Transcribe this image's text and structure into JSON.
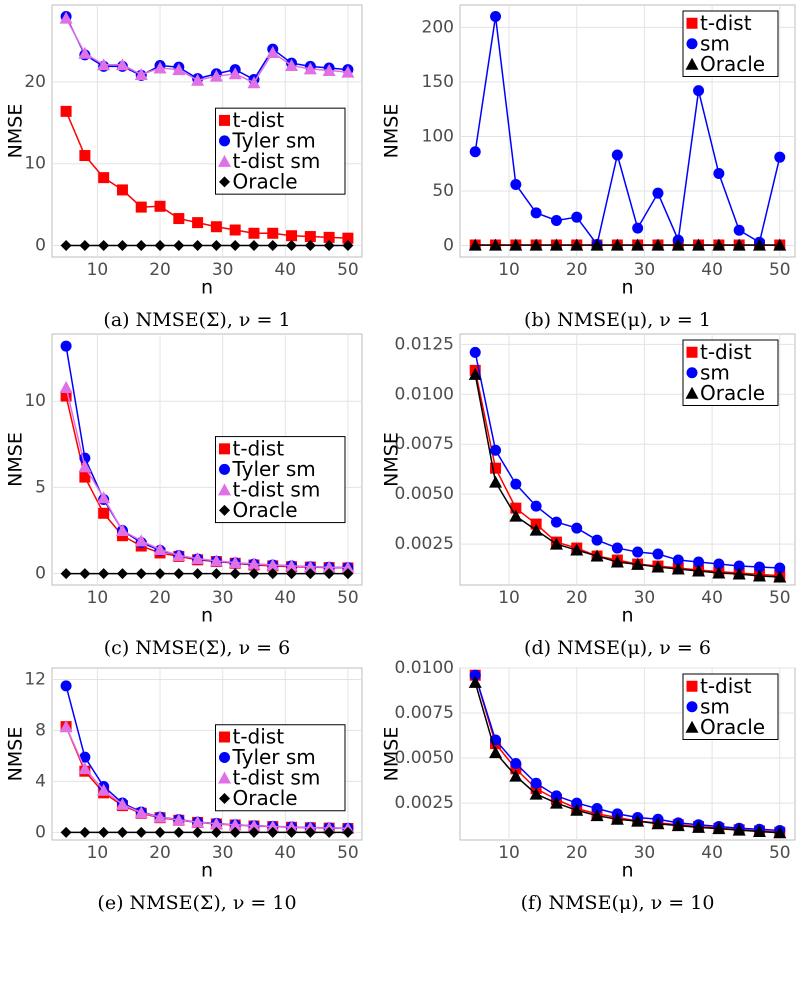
{
  "chart_data": [
    {
      "type": "line",
      "caption": "(a) NMSE(Σ),  ν = 1",
      "xlabel": "n",
      "ylabel": "NMSE",
      "grid": true,
      "legend": "right",
      "x": [
        5,
        8,
        11,
        14,
        17,
        20,
        23,
        26,
        29,
        32,
        35,
        38,
        41,
        44,
        47,
        50
      ],
      "xlim": [
        2.75,
        52.25
      ],
      "xticks": [
        10,
        20,
        30,
        40,
        50
      ],
      "ylim": [
        -1.4,
        29.4
      ],
      "yticks": [
        0,
        10,
        20
      ],
      "series": [
        {
          "name": "t-dist",
          "color": "#ff0000",
          "marker": "square",
          "values": [
            16.4,
            11.0,
            8.3,
            6.8,
            4.7,
            4.8,
            3.3,
            2.8,
            2.3,
            1.9,
            1.5,
            1.5,
            1.2,
            1.1,
            1.0,
            0.9
          ]
        },
        {
          "name": "Tyler sm",
          "color": "#0000ff",
          "marker": "circle",
          "values": [
            28.0,
            23.3,
            21.9,
            21.9,
            20.8,
            22.0,
            21.8,
            20.4,
            21.0,
            21.5,
            20.3,
            24.0,
            22.3,
            21.9,
            21.7,
            21.5
          ]
        },
        {
          "name": "t-dist sm",
          "color": "#e070e6",
          "marker": "triangle",
          "values": [
            27.8,
            23.5,
            22.1,
            22.1,
            20.9,
            21.7,
            21.5,
            20.2,
            20.7,
            21.0,
            19.9,
            23.6,
            22.0,
            21.6,
            21.4,
            21.2
          ]
        },
        {
          "name": "Oracle",
          "color": "#000000",
          "marker": "diamond",
          "values": [
            0,
            0,
            0,
            0,
            0,
            0,
            0,
            0,
            0,
            0,
            0,
            0,
            0,
            0,
            0,
            0
          ]
        }
      ]
    },
    {
      "type": "line",
      "caption": "(b) NMSE(μ),  ν = 1",
      "xlabel": "n",
      "ylabel": "NMSE",
      "grid": true,
      "legend": "top-right",
      "x": [
        5,
        8,
        11,
        14,
        17,
        20,
        23,
        26,
        29,
        32,
        35,
        38,
        41,
        44,
        47,
        50
      ],
      "xlim": [
        2.75,
        52.25
      ],
      "xticks": [
        10,
        20,
        30,
        40,
        50
      ],
      "ylim": [
        -10.5,
        220.5
      ],
      "yticks": [
        0,
        50,
        100,
        150,
        200
      ],
      "series": [
        {
          "name": "t-dist",
          "color": "#ff0000",
          "marker": "square",
          "values": [
            0.5,
            0.5,
            0.5,
            0.5,
            0.5,
            0.5,
            0.5,
            0.5,
            0.5,
            0.5,
            0.5,
            0.5,
            0.5,
            0.5,
            0.5,
            0.5
          ]
        },
        {
          "name": "sm",
          "color": "#0000ff",
          "marker": "circle",
          "values": [
            86,
            210,
            56,
            30,
            23,
            26,
            1,
            83,
            16,
            48,
            5,
            142,
            66,
            14,
            3,
            81
          ]
        },
        {
          "name": "Oracle",
          "color": "#000000",
          "marker": "triangle",
          "values": [
            0.4,
            0.4,
            0.4,
            0.4,
            0.4,
            0.4,
            0.4,
            0.4,
            0.4,
            0.4,
            0.4,
            0.4,
            0.4,
            0.4,
            0.4,
            0.4
          ]
        }
      ]
    },
    {
      "type": "line",
      "caption": "(c) NMSE(Σ),  ν = 6",
      "xlabel": "n",
      "ylabel": "NMSE",
      "grid": true,
      "legend": "right",
      "x": [
        5,
        8,
        11,
        14,
        17,
        20,
        23,
        26,
        29,
        32,
        35,
        38,
        41,
        44,
        47,
        50
      ],
      "xlim": [
        2.75,
        52.25
      ],
      "xticks": [
        10,
        20,
        30,
        40,
        50
      ],
      "ylim": [
        -0.66,
        13.9
      ],
      "yticks": [
        0,
        5,
        10
      ],
      "series": [
        {
          "name": "t-dist",
          "color": "#ff0000",
          "marker": "square",
          "values": [
            10.3,
            5.6,
            3.5,
            2.2,
            1.6,
            1.2,
            1.0,
            0.8,
            0.7,
            0.6,
            0.5,
            0.45,
            0.4,
            0.38,
            0.35,
            0.33
          ]
        },
        {
          "name": "Tyler sm",
          "color": "#0000ff",
          "marker": "circle",
          "values": [
            13.2,
            6.7,
            4.3,
            2.5,
            1.8,
            1.35,
            1.05,
            0.85,
            0.72,
            0.62,
            0.55,
            0.5,
            0.45,
            0.4,
            0.37,
            0.35
          ]
        },
        {
          "name": "t-dist sm",
          "color": "#e070e6",
          "marker": "triangle",
          "values": [
            10.8,
            6.2,
            4.4,
            2.5,
            1.9,
            1.4,
            1.05,
            0.87,
            0.74,
            0.64,
            0.56,
            0.5,
            0.45,
            0.4,
            0.37,
            0.35
          ]
        },
        {
          "name": "Oracle",
          "color": "#000000",
          "marker": "diamond",
          "values": [
            0,
            0,
            0,
            0,
            0,
            0,
            0,
            0,
            0,
            0,
            0,
            0,
            0,
            0,
            0,
            0
          ]
        }
      ]
    },
    {
      "type": "line",
      "caption": "(d) NMSE(μ),  ν = 6",
      "xlabel": "n",
      "ylabel": "NMSE",
      "grid": true,
      "legend": "top-right",
      "x": [
        5,
        8,
        11,
        14,
        17,
        20,
        23,
        26,
        29,
        32,
        35,
        38,
        41,
        44,
        47,
        50
      ],
      "xlim": [
        2.75,
        52.25
      ],
      "xticks": [
        10,
        20,
        30,
        40,
        50
      ],
      "ylim": [
        0.00045,
        0.01302
      ],
      "yticks": [
        0.0025,
        {
          "value": 0.005,
          "label": "0.0050"
        },
        0.0075,
        {
          "value": 0.01,
          "label": "0.0100"
        },
        0.0125
      ],
      "series": [
        {
          "name": "t-dist",
          "color": "#ff0000",
          "marker": "square",
          "values": [
            0.0112,
            0.0063,
            0.0043,
            0.0035,
            0.0026,
            0.0023,
            0.0019,
            0.0017,
            0.0015,
            0.0014,
            0.0013,
            0.0012,
            0.00112,
            0.00105,
            0.00098,
            0.00092
          ]
        },
        {
          "name": "sm",
          "color": "#0000ff",
          "marker": "circle",
          "values": [
            0.0121,
            0.0072,
            0.0055,
            0.0044,
            0.0036,
            0.0033,
            0.0027,
            0.0023,
            0.0021,
            0.002,
            0.0017,
            0.0016,
            0.0015,
            0.0014,
            0.00135,
            0.0013
          ]
        },
        {
          "name": "Oracle",
          "color": "#000000",
          "marker": "triangle",
          "values": [
            0.011,
            0.0056,
            0.0039,
            0.0032,
            0.0025,
            0.0022,
            0.0019,
            0.0016,
            0.00148,
            0.00135,
            0.00125,
            0.00115,
            0.00105,
            0.001,
            0.0009,
            0.00085
          ]
        }
      ]
    },
    {
      "type": "line",
      "caption": "(e) NMSE(Σ),  ν = 10",
      "xlabel": "n",
      "ylabel": "NMSE",
      "grid": true,
      "legend": "right",
      "x": [
        5,
        8,
        11,
        14,
        17,
        20,
        23,
        26,
        29,
        32,
        35,
        38,
        41,
        44,
        47,
        50
      ],
      "xlim": [
        2.75,
        52.25
      ],
      "xticks": [
        10,
        20,
        30,
        40,
        50
      ],
      "ylim": [
        -0.6,
        12.9
      ],
      "yticks": [
        0,
        4,
        8,
        12
      ],
      "series": [
        {
          "name": "t-dist",
          "color": "#ff0000",
          "marker": "square",
          "values": [
            8.3,
            4.8,
            3.1,
            2.1,
            1.5,
            1.15,
            0.95,
            0.78,
            0.66,
            0.58,
            0.5,
            0.45,
            0.4,
            0.36,
            0.33,
            0.3
          ]
        },
        {
          "name": "Tyler sm",
          "color": "#0000ff",
          "marker": "circle",
          "values": [
            11.5,
            5.9,
            3.6,
            2.3,
            1.6,
            1.2,
            1.0,
            0.8,
            0.7,
            0.6,
            0.52,
            0.47,
            0.42,
            0.38,
            0.35,
            0.32
          ]
        },
        {
          "name": "t-dist sm",
          "color": "#e070e6",
          "marker": "triangle",
          "values": [
            8.3,
            5.0,
            3.3,
            2.2,
            1.55,
            1.2,
            0.97,
            0.8,
            0.68,
            0.6,
            0.52,
            0.46,
            0.41,
            0.37,
            0.34,
            0.31
          ]
        },
        {
          "name": "Oracle",
          "color": "#000000",
          "marker": "diamond",
          "values": [
            0,
            0,
            0,
            0,
            0,
            0,
            0,
            0,
            0,
            0,
            0,
            0,
            0,
            0,
            0,
            0
          ]
        }
      ]
    },
    {
      "type": "line",
      "caption": "(f) NMSE(μ),  ν = 10",
      "xlabel": "n",
      "ylabel": "NMSE",
      "grid": true,
      "legend": "top-right",
      "x": [
        5,
        8,
        11,
        14,
        17,
        20,
        23,
        26,
        29,
        32,
        35,
        38,
        41,
        44,
        47,
        50
      ],
      "xlim": [
        2.75,
        52.25
      ],
      "xticks": [
        10,
        20,
        30,
        40,
        50
      ],
      "ylim": [
        0.00045,
        0.01
      ],
      "yticks": [
        0.0025,
        {
          "value": 0.005,
          "label": "0.0050"
        },
        0.0075,
        {
          "value": 0.01,
          "label": "0.0100"
        }
      ],
      "series": [
        {
          "name": "t-dist",
          "color": "#ff0000",
          "marker": "square",
          "values": [
            0.0096,
            0.0058,
            0.0044,
            0.0033,
            0.0027,
            0.0022,
            0.0019,
            0.0017,
            0.0015,
            0.0014,
            0.0013,
            0.0012,
            0.0011,
            0.00102,
            0.00095,
            0.00088
          ]
        },
        {
          "name": "sm",
          "color": "#0000ff",
          "marker": "circle",
          "values": [
            0.0096,
            0.006,
            0.0047,
            0.0036,
            0.0029,
            0.0025,
            0.0022,
            0.0019,
            0.0017,
            0.0016,
            0.0014,
            0.0013,
            0.0012,
            0.0011,
            0.00105,
            0.00098
          ]
        },
        {
          "name": "Oracle",
          "color": "#000000",
          "marker": "triangle",
          "values": [
            0.0092,
            0.0053,
            0.004,
            0.003,
            0.0025,
            0.0021,
            0.0018,
            0.0016,
            0.0015,
            0.00135,
            0.00125,
            0.00115,
            0.00108,
            0.001,
            0.00092,
            0.00085
          ]
        }
      ]
    }
  ]
}
